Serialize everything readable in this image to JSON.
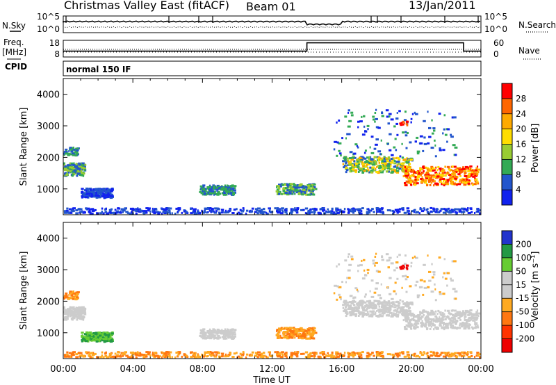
{
  "header": {
    "title": "Christmas Valley East (fitACF)",
    "beam": "Beam 01",
    "date": "13/Jan/2011"
  },
  "labels": {
    "nsky": "N.Sky",
    "nsearch": "N.Search",
    "freq_line1": "Freq.",
    "freq_line2": "[MHz]",
    "nave": "Nave",
    "cpid": "CPID",
    "cpid_value": "normal 150 IF"
  },
  "chart_data": [
    {
      "type": "line",
      "name": "noise",
      "left_ticks": [
        "10^5",
        "10^0"
      ],
      "right_ticks": [
        "10^5",
        "10^0"
      ],
      "left_label": "N.Sky",
      "right_label": "N.Search"
    },
    {
      "type": "line",
      "name": "freq-nave",
      "left_ticks": [
        "18",
        "8"
      ],
      "right_ticks": [
        "60",
        "0"
      ],
      "ylim_left": [
        8,
        18
      ],
      "ylim_right": [
        0,
        60
      ],
      "steps": [
        {
          "x": [
            0,
            14.0
          ],
          "y": 11.5
        },
        {
          "x": [
            14.0,
            23.0
          ],
          "y": 16.5
        },
        {
          "x": [
            23.0,
            24.0
          ],
          "y": 11.5
        }
      ]
    },
    {
      "type": "heatmap",
      "name": "power",
      "ylabel": "Slant Range [km]",
      "yticks": [
        1000,
        2000,
        3000,
        4000
      ],
      "ylim": [
        180,
        4500
      ],
      "xlim": [
        0,
        24
      ],
      "colorbar_label": "Power [dB]",
      "colorbar_ticks": [
        "28",
        "24",
        "20",
        "16",
        "12",
        "8",
        "4"
      ],
      "colorbar_colors": [
        "#ff0000",
        "#ff6600",
        "#ffaa00",
        "#ffdd00",
        "#99cc33",
        "#33aa55",
        "#2255cc",
        "#1122ee"
      ]
    },
    {
      "type": "heatmap",
      "name": "velocity",
      "ylabel": "Slant Range [km]",
      "yticks": [
        1000,
        2000,
        3000,
        4000
      ],
      "ylim": [
        180,
        4500
      ],
      "xlim": [
        0,
        24
      ],
      "xticks": [
        "00:00",
        "04:00",
        "08:00",
        "12:00",
        "16:00",
        "20:00",
        "00:00"
      ],
      "xlabel": "Time UT",
      "colorbar_label": "Velocity [m s⁻¹]",
      "colorbar_ticks": [
        "200",
        "100",
        "50",
        "15",
        "-15",
        "-50",
        "-100",
        "-200"
      ],
      "colorbar_colors": [
        "#2233cc",
        "#229944",
        "#66cc33",
        "#cccccc",
        "#cccccc",
        "#ffaa22",
        "#ff7711",
        "#ff3300",
        "#ee0000"
      ]
    }
  ]
}
